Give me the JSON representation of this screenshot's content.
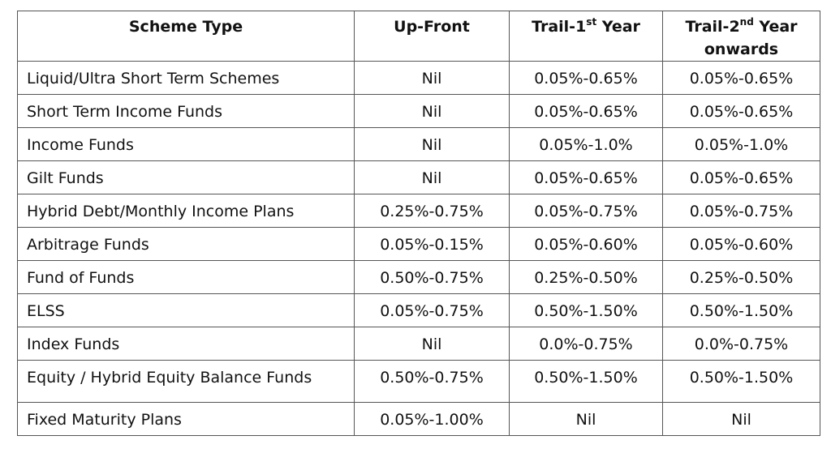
{
  "headers": {
    "scheme_type": "Scheme Type",
    "up_front": "Up-Front",
    "trail1_prefix": "Trail-1",
    "trail1_sup": "st",
    "trail1_suffix": " Year",
    "trail2_prefix": "Trail-2",
    "trail2_sup": "nd",
    "trail2_suffix": " Year onwards"
  },
  "rows": [
    {
      "scheme": "Liquid/Ultra Short Term Schemes",
      "up_front": "Nil",
      "trail_1st": "0.05%-0.65%",
      "trail_2nd": "0.05%-0.65%"
    },
    {
      "scheme": "Short Term Income Funds",
      "up_front": "Nil",
      "trail_1st": "0.05%-0.65%",
      "trail_2nd": "0.05%-0.65%"
    },
    {
      "scheme": "Income Funds",
      "up_front": "Nil",
      "trail_1st": "0.05%-1.0%",
      "trail_2nd": "0.05%-1.0%"
    },
    {
      "scheme": "Gilt Funds",
      "up_front": "Nil",
      "trail_1st": "0.05%-0.65%",
      "trail_2nd": "0.05%-0.65%"
    },
    {
      "scheme": "Hybrid Debt/Monthly Income Plans",
      "up_front": "0.25%-0.75%",
      "trail_1st": "0.05%-0.75%",
      "trail_2nd": "0.05%-0.75%"
    },
    {
      "scheme": "Arbitrage Funds",
      "up_front": "0.05%-0.15%",
      "trail_1st": "0.05%-0.60%",
      "trail_2nd": "0.05%-0.60%"
    },
    {
      "scheme": "Fund of Funds",
      "up_front": "0.50%-0.75%",
      "trail_1st": "0.25%-0.50%",
      "trail_2nd": "0.25%-0.50%"
    },
    {
      "scheme": "ELSS",
      "up_front": "0.05%-0.75%",
      "trail_1st": "0.50%-1.50%",
      "trail_2nd": "0.50%-1.50%"
    },
    {
      "scheme": "Index Funds",
      "up_front": "Nil",
      "trail_1st": "0.0%-0.75%",
      "trail_2nd": "0.0%-0.75%"
    },
    {
      "scheme": "Equity / Hybrid Equity Balance Funds",
      "up_front": "0.50%-0.75%",
      "trail_1st": "0.50%-1.50%",
      "trail_2nd": "0.50%-1.50%"
    },
    {
      "scheme": "Fixed Maturity Plans",
      "up_front": "0.05%-1.00%",
      "trail_1st": "Nil",
      "trail_2nd": "Nil"
    }
  ]
}
